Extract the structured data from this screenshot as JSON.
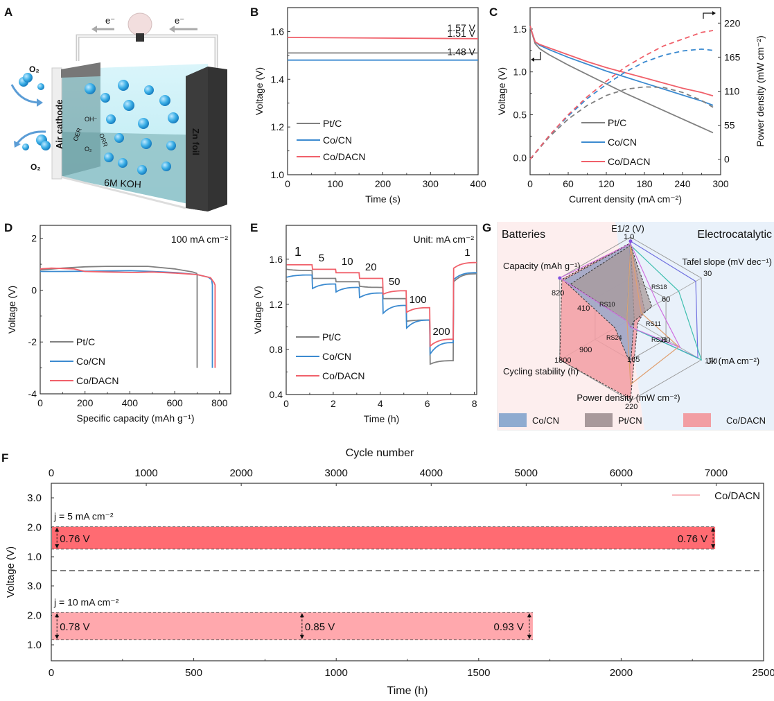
{
  "panels": {
    "A": {
      "label": "A",
      "electron_left": "e⁻",
      "electron_right": "e⁻",
      "o2_top": "O₂",
      "o2_bottom": "O₂",
      "cathode": "Air cathode",
      "anode": "Zn foil",
      "electrolyte": "6M KOH",
      "oer": "OER",
      "orr": "ORR",
      "oh": "OH⁻",
      "o2_cycle": "O₂"
    },
    "B": {
      "label": "B"
    },
    "C": {
      "label": "C"
    },
    "D": {
      "label": "D"
    },
    "E": {
      "label": "E"
    },
    "F": {
      "label": "F"
    },
    "G": {
      "label": "G"
    }
  },
  "colors": {
    "ptc": "#808080",
    "cocn": "#3b8ad0",
    "codacn": "#f0606a",
    "f_band_5": "#ff6b72",
    "f_band_10": "#ffa8ad",
    "g_batteries_bg": "#fdeeee",
    "g_electro_bg": "#e9f1fa",
    "g_cocn": "#8fabd0",
    "g_ptcn": "#a8999b",
    "g_codacn": "#f29ea3"
  },
  "chart_data": [
    {
      "id": "B",
      "type": "line",
      "title": "",
      "xlabel": "Time (s)",
      "ylabel": "Voltage (V)",
      "xlim": [
        0,
        400
      ],
      "ylim": [
        1.0,
        1.7
      ],
      "xticks": [
        0,
        100,
        200,
        300,
        400
      ],
      "yticks": [
        1.0,
        1.2,
        1.4,
        1.6
      ],
      "legend": "bottom-left",
      "series": [
        {
          "name": "Pt/C",
          "color_key": "ptc",
          "x": [
            0,
            400
          ],
          "y": [
            1.51,
            1.51
          ]
        },
        {
          "name": "Co/CN",
          "color_key": "cocn",
          "x": [
            0,
            400
          ],
          "y": [
            1.48,
            1.48
          ]
        },
        {
          "name": "Co/DACN",
          "color_key": "codacn",
          "x": [
            0,
            400
          ],
          "y": [
            1.575,
            1.57
          ]
        }
      ],
      "annotations": [
        "1.57 V",
        "1.51 V",
        "1.48 V"
      ]
    },
    {
      "id": "C",
      "type": "line",
      "xlabel": "Current density (mA cm⁻²)",
      "ylabel": "Voltage (V)",
      "y2label": "Power density (mW cm⁻²)",
      "xlim": [
        0,
        300
      ],
      "ylim": [
        -0.2,
        1.75
      ],
      "y2lim": [
        -25,
        245
      ],
      "xticks": [
        0,
        60,
        120,
        180,
        240,
        300
      ],
      "yticks": [
        0.0,
        0.5,
        1.0,
        1.5
      ],
      "y2ticks": [
        0,
        55,
        110,
        165,
        220
      ],
      "legend": "bottom-center",
      "series": [
        {
          "name": "Pt/C",
          "color_key": "ptc",
          "x": [
            0,
            3,
            8,
            15,
            30,
            60,
            90,
            120,
            150,
            180,
            210,
            240,
            270,
            288
          ],
          "y": [
            1.52,
            1.45,
            1.33,
            1.27,
            1.2,
            1.08,
            0.97,
            0.86,
            0.75,
            0.65,
            0.55,
            0.45,
            0.35,
            0.29
          ]
        },
        {
          "name": "Co/CN",
          "color_key": "cocn",
          "x": [
            0,
            3,
            8,
            15,
            30,
            60,
            90,
            120,
            150,
            180,
            210,
            240,
            270,
            288
          ],
          "y": [
            1.54,
            1.46,
            1.35,
            1.31,
            1.26,
            1.17,
            1.09,
            1.01,
            0.94,
            0.87,
            0.8,
            0.73,
            0.66,
            0.61
          ]
        },
        {
          "name": "Co/DACN",
          "color_key": "codacn",
          "x": [
            0,
            3,
            8,
            15,
            30,
            60,
            90,
            120,
            150,
            180,
            210,
            240,
            270,
            288
          ],
          "y": [
            1.54,
            1.46,
            1.35,
            1.32,
            1.28,
            1.2,
            1.12,
            1.05,
            0.99,
            0.93,
            0.87,
            0.81,
            0.76,
            0.72
          ]
        }
      ],
      "power_series": [
        {
          "name": "Pt/C",
          "color_key": "ptc",
          "x": [
            0,
            30,
            60,
            90,
            120,
            150,
            180,
            210,
            240,
            270,
            288
          ],
          "y": [
            0,
            36,
            65,
            87,
            103,
            113,
            117,
            116,
            108,
            95,
            84
          ]
        },
        {
          "name": "Co/CN",
          "color_key": "cocn",
          "x": [
            0,
            30,
            60,
            90,
            120,
            150,
            180,
            210,
            240,
            270,
            288
          ],
          "y": [
            0,
            38,
            70,
            98,
            121,
            141,
            157,
            168,
            175,
            178,
            176
          ]
        },
        {
          "name": "Co/DACN",
          "color_key": "codacn",
          "x": [
            0,
            30,
            60,
            90,
            120,
            150,
            180,
            210,
            240,
            270,
            288
          ],
          "y": [
            0,
            38,
            72,
            101,
            126,
            149,
            167,
            183,
            194,
            205,
            208
          ]
        }
      ]
    },
    {
      "id": "D",
      "type": "line",
      "xlabel": "Specific capacity (mAh g⁻¹)",
      "ylabel": "Voltage (V)",
      "xlim": [
        0,
        850
      ],
      "ylim": [
        -4,
        2.5
      ],
      "xticks": [
        0,
        200,
        400,
        600,
        800
      ],
      "yticks": [
        -4,
        -2,
        0,
        2
      ],
      "legend": "bottom-left",
      "annotation": "100 mA cm⁻²",
      "series": [
        {
          "name": "Pt/C",
          "color_key": "ptc",
          "x": [
            0,
            100,
            200,
            300,
            480,
            600,
            680,
            698,
            700,
            700
          ],
          "y": [
            0.78,
            0.85,
            0.9,
            0.92,
            0.92,
            0.82,
            0.7,
            0.65,
            0.6,
            -3.0
          ]
        },
        {
          "name": "Co/CN",
          "color_key": "cocn",
          "x": [
            0,
            100,
            200,
            300,
            400,
            500,
            600,
            700,
            750,
            765,
            768,
            768
          ],
          "y": [
            0.72,
            0.72,
            0.73,
            0.74,
            0.75,
            0.72,
            0.68,
            0.6,
            0.5,
            0.4,
            0.2,
            -3.0
          ]
        },
        {
          "name": "Co/DACN",
          "color_key": "codacn",
          "x": [
            0,
            50,
            150,
            200,
            300,
            420,
            500,
            600,
            700,
            760,
            775,
            780,
            780
          ],
          "y": [
            0.82,
            0.85,
            0.82,
            0.72,
            0.7,
            0.68,
            0.7,
            0.66,
            0.6,
            0.48,
            0.3,
            0.2,
            -3.0
          ]
        }
      ]
    },
    {
      "id": "E",
      "type": "line",
      "xlabel": "Time (h)",
      "ylabel": "Voltage (V)",
      "xlim": [
        0,
        8.1
      ],
      "ylim": [
        0.4,
        1.9
      ],
      "xticks": [
        0,
        2,
        4,
        6,
        8
      ],
      "yticks": [
        0.4,
        0.8,
        1.2,
        1.6
      ],
      "legend": "bottom-left",
      "annotation": "Unit: mA cm⁻²",
      "step_labels": [
        "1",
        "5",
        "10",
        "20",
        "50",
        "100",
        "200",
        "1"
      ],
      "step_current_densities": [
        1,
        5,
        10,
        20,
        50,
        100,
        200,
        1
      ],
      "series": [
        {
          "name": "Pt/C",
          "color_key": "ptc",
          "step_start": [
            1.51,
            1.43,
            1.4,
            1.36,
            1.25,
            1.05,
            0.67,
            1.4
          ],
          "step_end": [
            1.5,
            1.43,
            1.4,
            1.35,
            1.25,
            1.06,
            0.7,
            1.47
          ]
        },
        {
          "name": "Co/CN",
          "color_key": "cocn",
          "step_start": [
            1.44,
            1.34,
            1.31,
            1.26,
            1.12,
            0.99,
            0.76,
            1.42
          ],
          "step_end": [
            1.46,
            1.38,
            1.35,
            1.3,
            1.19,
            1.06,
            0.86,
            1.48
          ]
        },
        {
          "name": "Co/DACN",
          "color_key": "codacn",
          "step_start": [
            1.55,
            1.51,
            1.48,
            1.43,
            1.29,
            1.13,
            0.83,
            1.52
          ],
          "step_end": [
            1.55,
            1.51,
            1.48,
            1.43,
            1.32,
            1.17,
            0.89,
            1.57
          ]
        }
      ]
    },
    {
      "id": "G",
      "type": "radar",
      "left_region": "Batteries",
      "right_region": "Electrocatalytic",
      "axes": [
        {
          "name": "E1/2 (V)",
          "label_main": "E",
          "label_sub": "1/2",
          "label_rest": " (V)",
          "ticks": [
            "1.0"
          ],
          "max": 1.0
        },
        {
          "name": "Tafel slope (mV dec⁻¹)",
          "label_main": "Tafel slope (mV dec",
          "label_sup": "-1",
          "label_rest": ")",
          "ticks": [
            "30",
            "60"
          ]
        },
        {
          "name": "Jk (mA cm⁻²)",
          "label_main": "J",
          "label_sub": "k",
          "label_rest": " (mA cm⁻²)",
          "ticks": [
            "120",
            "60"
          ]
        },
        {
          "name": "Power density (mW cm⁻²)",
          "label_main": "Power density (mW cm⁻²)",
          "ticks": [
            "220",
            "165"
          ]
        },
        {
          "name": "Cycling stability (h)",
          "label_main": "Cycling stability (h)",
          "ticks": [
            "1800",
            "900"
          ]
        },
        {
          "name": "Capacity (mAh g⁻¹)",
          "label_main": "Capacity (mAh g",
          "label_sup": "-1",
          "label_rest": ")",
          "ticks": [
            "820",
            "410"
          ]
        }
      ],
      "references": [
        "RS10",
        "RS18",
        "RS11",
        "RS24",
        "RS21"
      ],
      "legend": [
        {
          "name": "Co/CN",
          "color_key": "g_cocn"
        },
        {
          "name": "Pt/CN",
          "color_key": "g_ptcn"
        },
        {
          "name": "Co/DACN",
          "color_key": "g_codacn"
        }
      ],
      "series": [
        {
          "name": "Co/DACN",
          "color_key": "g_codacn",
          "values": [
            0.93,
            0.2,
            0.1,
            0.98,
            1.0,
            0.97
          ]
        },
        {
          "name": "Co/CN",
          "color_key": "g_cocn",
          "values": [
            0.92,
            0.05,
            0.05,
            0.55,
            0.22,
            0.95
          ]
        },
        {
          "name": "Pt/CN",
          "color_key": "g_ptcn",
          "values": [
            0.9,
            0.3,
            0.05,
            0.1,
            0.05,
            0.85
          ]
        }
      ]
    },
    {
      "id": "F",
      "type": "bar",
      "title": "",
      "xlabel": "Time (h)",
      "x2label": "Cycle number",
      "ylabel": "Voltage (V)",
      "xlim": [
        0,
        2500
      ],
      "x2lim": [
        0,
        7500
      ],
      "xticks": [
        0,
        500,
        1000,
        1500,
        2000,
        2500
      ],
      "x2ticks": [
        0,
        1000,
        2000,
        3000,
        4000,
        5000,
        6000,
        7000
      ],
      "yticks_upper": [
        "3.0",
        "2.0",
        "1.0"
      ],
      "yticks_lower": [
        "3.0",
        "2.0",
        "1.0"
      ],
      "legend": "top-right",
      "legend_label": "Co/DACN",
      "bands": [
        {
          "label": "j = 5 mA cm⁻²",
          "current_density": 5,
          "t_end": 2330,
          "v_high": 2.02,
          "v_low": 1.26,
          "gaps": [
            {
              "t": 20,
              "text": "0.76 V",
              "side": "right"
            },
            {
              "t": 2330,
              "text": "0.76 V",
              "side": "left"
            }
          ],
          "color_key": "f_band_5"
        },
        {
          "label": "j = 10 mA cm⁻²",
          "current_density": 10,
          "t_end": 1690,
          "v_high": 2.1,
          "v_low": 1.17,
          "gaps": [
            {
              "t": 20,
              "text": "0.78 V",
              "side": "right"
            },
            {
              "t": 880,
              "text": "0.85 V",
              "side": "right"
            },
            {
              "t": 1685,
              "text": "0.93 V",
              "side": "left"
            }
          ],
          "color_key": "f_band_10"
        }
      ]
    }
  ]
}
